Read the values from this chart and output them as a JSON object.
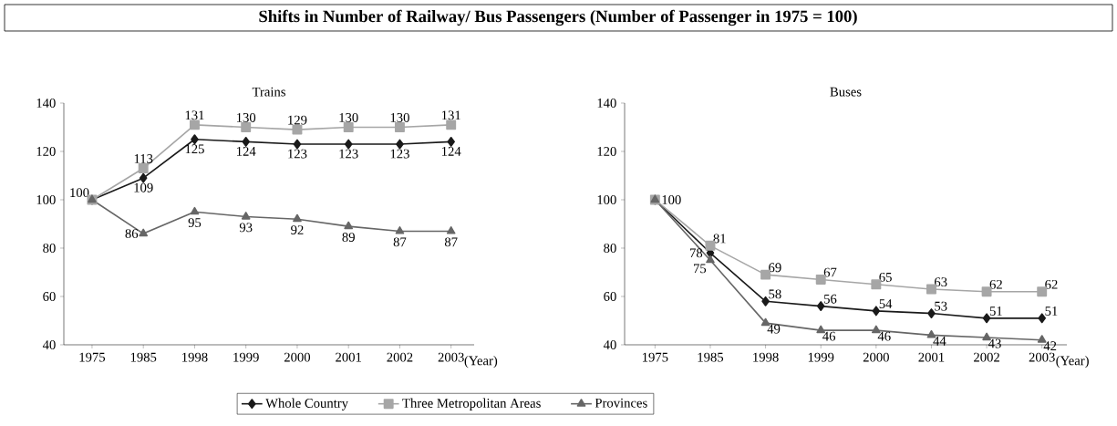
{
  "chart_data": [
    {
      "type": "line",
      "title": "Shifts in Number of Railway/ Bus Passengers (Number of Passenger in 1975 = 100)",
      "subtitle": "Trains",
      "xlabel": "(Year)",
      "categories": [
        "1975",
        "1985",
        "1998",
        "1999",
        "2000",
        "2001",
        "2002",
        "2003"
      ],
      "ylim": [
        40,
        140
      ],
      "yticks": [
        40,
        60,
        80,
        100,
        120,
        140
      ],
      "legend": "bottom",
      "series": [
        {
          "name": "Whole Country",
          "color": "#1a1a1a",
          "marker": "diamond",
          "values": [
            100,
            109,
            125,
            124,
            123,
            123,
            123,
            124
          ],
          "value_labels": [
            null,
            "109",
            "125",
            "124",
            "123",
            "123",
            "123",
            "124"
          ]
        },
        {
          "name": "Three Metropolitan Areas",
          "color": "#a6a6a6",
          "marker": "square",
          "values": [
            100,
            113,
            131,
            130,
            129,
            130,
            130,
            131
          ],
          "value_labels": [
            "100",
            "113",
            "131",
            "130",
            "129",
            "130",
            "130",
            "131"
          ]
        },
        {
          "name": "Provinces",
          "color": "#666666",
          "marker": "triangle",
          "values": [
            100,
            86,
            95,
            93,
            92,
            89,
            87,
            87
          ],
          "value_labels": [
            null,
            "86",
            "95",
            "93",
            "92",
            "89",
            "87",
            "87"
          ]
        }
      ]
    },
    {
      "type": "line",
      "subtitle": "Buses",
      "xlabel": "(Year)",
      "categories": [
        "1975",
        "1985",
        "1998",
        "1999",
        "2000",
        "2001",
        "2002",
        "2003"
      ],
      "ylim": [
        40,
        140
      ],
      "yticks": [
        40,
        60,
        80,
        100,
        120,
        140
      ],
      "series": [
        {
          "color": "#1a1a1a",
          "marker": "diamond",
          "values": [
            100,
            78,
            58,
            56,
            54,
            53,
            51,
            51
          ],
          "value_labels": [
            null,
            "78",
            "58",
            "56",
            "54",
            "53",
            "51",
            "51"
          ]
        },
        {
          "color": "#a6a6a6",
          "marker": "square",
          "values": [
            100,
            81,
            69,
            67,
            65,
            63,
            62,
            62
          ],
          "value_labels": [
            "100",
            "81",
            "69",
            "67",
            "65",
            "63",
            "62",
            "62"
          ]
        },
        {
          "color": "#666666",
          "marker": "triangle",
          "values": [
            100,
            75,
            49,
            46,
            46,
            44,
            43,
            42
          ],
          "value_labels": [
            null,
            "75",
            "49",
            "46",
            "46",
            "44",
            "43",
            "42"
          ]
        }
      ]
    }
  ]
}
